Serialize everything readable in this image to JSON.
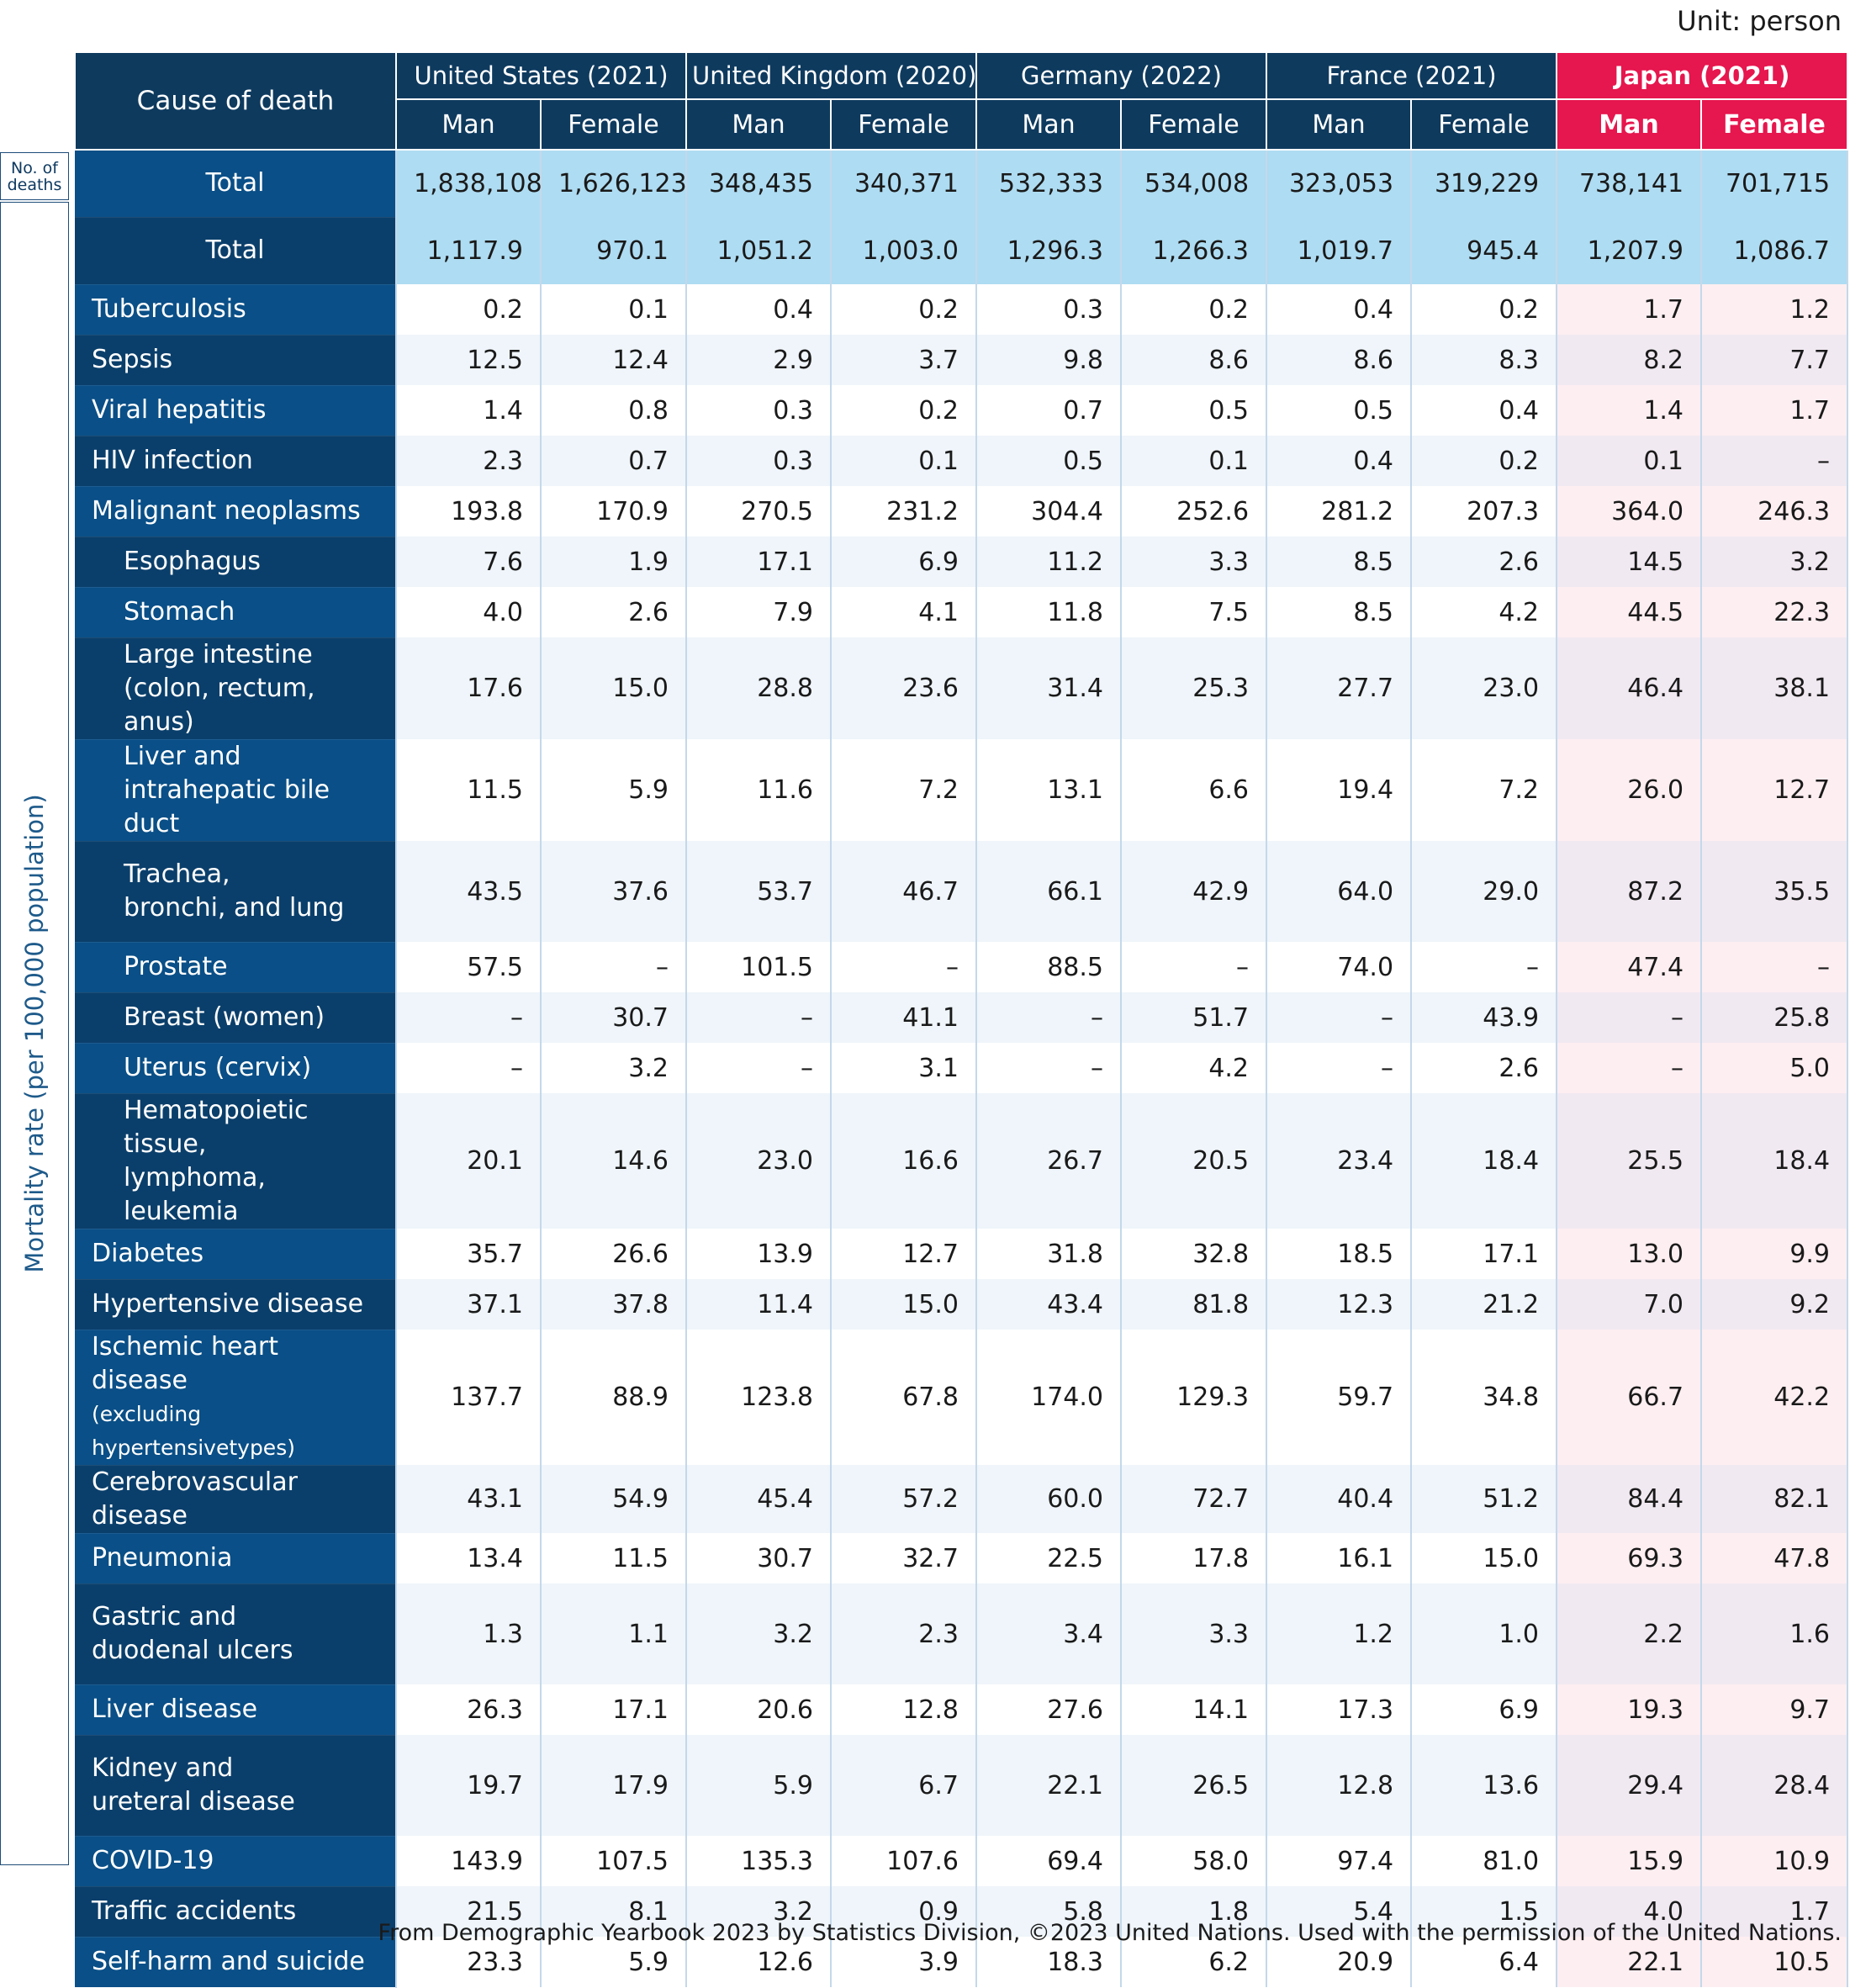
{
  "unit_label": "Unit: person",
  "source": "From Demographic Yearbook 2023 by Statistics Division, ©2023 United Nations. Used with the permission of the United Nations.",
  "side_labels": {
    "deaths": "No. of deaths",
    "mortality": "Mortality rate (per 100,000 population)"
  },
  "header": {
    "cause_label": "Cause of death",
    "countries": [
      {
        "name": "United States (2021)",
        "highlight": false
      },
      {
        "name": "United Kingdom (2020)",
        "highlight": false
      },
      {
        "name": "Germany (2022)",
        "highlight": false
      },
      {
        "name": "France (2021)",
        "highlight": false
      },
      {
        "name": "Japan (2021)",
        "highlight": true
      }
    ],
    "sexes": [
      "Man",
      "Female"
    ]
  },
  "colors": {
    "header_navy": "#0e3a5e",
    "label_blue": "#0a4f87",
    "label_navy": "#0b3f6b",
    "japan_red": "#e6164e",
    "total_row": "#aedcf2",
    "japan_tint": "#fdeef1"
  },
  "rows": [
    {
      "label": "Total",
      "total": true,
      "height": 80,
      "values": [
        "1,838,108",
        "1,626,123",
        "348,435",
        "340,371",
        "532,333",
        "534,008",
        "323,053",
        "319,229",
        "738,141",
        "701,715"
      ]
    },
    {
      "label": "Total",
      "total": true,
      "height": 80,
      "values": [
        "1,117.9",
        "970.1",
        "1,051.2",
        "1,003.0",
        "1,296.3",
        "1,266.3",
        "1,019.7",
        "945.4",
        "1,207.9",
        "1,086.7"
      ]
    },
    {
      "label": "Tuberculosis",
      "height": 60,
      "values": [
        "0.2",
        "0.1",
        "0.4",
        "0.2",
        "0.3",
        "0.2",
        "0.4",
        "0.2",
        "1.7",
        "1.2"
      ]
    },
    {
      "label": "Sepsis",
      "height": 60,
      "values": [
        "12.5",
        "12.4",
        "2.9",
        "3.7",
        "9.8",
        "8.6",
        "8.6",
        "8.3",
        "8.2",
        "7.7"
      ]
    },
    {
      "label": "Viral hepatitis",
      "height": 60,
      "values": [
        "1.4",
        "0.8",
        "0.3",
        "0.2",
        "0.7",
        "0.5",
        "0.5",
        "0.4",
        "1.4",
        "1.7"
      ]
    },
    {
      "label": "HIV infection",
      "height": 60,
      "values": [
        "2.3",
        "0.7",
        "0.3",
        "0.1",
        "0.5",
        "0.1",
        "0.4",
        "0.2",
        "0.1",
        "–"
      ]
    },
    {
      "label": "Malignant neoplasms",
      "height": 60,
      "values": [
        "193.8",
        "170.9",
        "270.5",
        "231.2",
        "304.4",
        "252.6",
        "281.2",
        "207.3",
        "364.0",
        "246.3"
      ]
    },
    {
      "label": "Esophagus",
      "indent": true,
      "height": 60,
      "values": [
        "7.6",
        "1.9",
        "17.1",
        "6.9",
        "11.2",
        "3.3",
        "8.5",
        "2.6",
        "14.5",
        "3.2"
      ]
    },
    {
      "label": "Stomach",
      "indent": true,
      "height": 60,
      "values": [
        "4.0",
        "2.6",
        "7.9",
        "4.1",
        "11.8",
        "7.5",
        "8.5",
        "4.2",
        "44.5",
        "22.3"
      ]
    },
    {
      "label": "Large intestine",
      "label2": " (colon, rectum, anus)",
      "indent": true,
      "height": 120,
      "values": [
        "17.6",
        "15.0",
        "28.8",
        "23.6",
        "31.4",
        "25.3",
        "27.7",
        "23.0",
        "46.4",
        "38.1"
      ]
    },
    {
      "label": "Liver and",
      "label2": "intrahepatic bile duct",
      "indent": true,
      "height": 120,
      "values": [
        "11.5",
        "5.9",
        "11.6",
        "7.2",
        "13.1",
        "6.6",
        "19.4",
        "7.2",
        "26.0",
        "12.7"
      ]
    },
    {
      "label": "Trachea,",
      "label2": "bronchi, and lung",
      "indent": true,
      "height": 120,
      "values": [
        "43.5",
        "37.6",
        "53.7",
        "46.7",
        "66.1",
        "42.9",
        "64.0",
        "29.0",
        "87.2",
        "35.5"
      ]
    },
    {
      "label": "Prostate",
      "indent": true,
      "height": 60,
      "values": [
        "57.5",
        "–",
        "101.5",
        "–",
        "88.5",
        "–",
        "74.0",
        "–",
        "47.4",
        "–"
      ]
    },
    {
      "label": "Breast (women)",
      "indent": true,
      "height": 60,
      "values": [
        "–",
        "30.7",
        "–",
        "41.1",
        "–",
        "51.7",
        "–",
        "43.9",
        "–",
        "25.8"
      ]
    },
    {
      "label": "Uterus (cervix)",
      "indent": true,
      "height": 60,
      "values": [
        "–",
        "3.2",
        "–",
        "3.1",
        "–",
        "4.2",
        "–",
        "2.6",
        "–",
        "5.0"
      ]
    },
    {
      "label": "Hematopoietic tissue,",
      "label2": "lymphoma, leukemia",
      "indent": true,
      "height": 120,
      "values": [
        "20.1",
        "14.6",
        "23.0",
        "16.6",
        "26.7",
        "20.5",
        "23.4",
        "18.4",
        "25.5",
        "18.4"
      ]
    },
    {
      "label": "Diabetes",
      "height": 60,
      "values": [
        "35.7",
        "26.6",
        "13.9",
        "12.7",
        "31.8",
        "32.8",
        "18.5",
        "17.1",
        "13.0",
        "9.9"
      ]
    },
    {
      "label": "Hypertensive disease",
      "height": 60,
      "values": [
        "37.1",
        "37.8",
        "11.4",
        "15.0",
        "43.4",
        "81.8",
        "12.3",
        "21.2",
        "7.0",
        "9.2"
      ]
    },
    {
      "label": "Ischemic heart disease",
      "label2": "(excluding hypertensivetypes)",
      "label2_small": true,
      "height": 120,
      "values": [
        "137.7",
        "88.9",
        "123.8",
        "67.8",
        "174.0",
        "129.3",
        "59.7",
        "34.8",
        "66.7",
        "42.2"
      ]
    },
    {
      "label": "Cerebrovascular disease",
      "height": 60,
      "values": [
        "43.1",
        "54.9",
        "45.4",
        "57.2",
        "60.0",
        "72.7",
        "40.4",
        "51.2",
        "84.4",
        "82.1"
      ]
    },
    {
      "label": "Pneumonia",
      "height": 60,
      "values": [
        "13.4",
        "11.5",
        "30.7",
        "32.7",
        "22.5",
        "17.8",
        "16.1",
        "15.0",
        "69.3",
        "47.8"
      ]
    },
    {
      "label": "Gastric and",
      "label2": "duodenal ulcers",
      "height": 120,
      "values": [
        "1.3",
        "1.1",
        "3.2",
        "2.3",
        "3.4",
        "3.3",
        "1.2",
        "1.0",
        "2.2",
        "1.6"
      ]
    },
    {
      "label": "Liver disease",
      "height": 60,
      "values": [
        "26.3",
        "17.1",
        "20.6",
        "12.8",
        "27.6",
        "14.1",
        "17.3",
        "6.9",
        "19.3",
        "9.7"
      ]
    },
    {
      "label": "Kidney and",
      "label2": "ureteral disease",
      "height": 120,
      "values": [
        "19.7",
        "17.9",
        "5.9",
        "6.7",
        "22.1",
        "26.5",
        "12.8",
        "13.6",
        "29.4",
        "28.4"
      ]
    },
    {
      "label": "COVID-19",
      "height": 60,
      "values": [
        "143.9",
        "107.5",
        "135.3",
        "107.6",
        "69.4",
        "58.0",
        "97.4",
        "81.0",
        "15.9",
        "10.9"
      ]
    },
    {
      "label": "Traffic accidents",
      "height": 60,
      "values": [
        "21.5",
        "8.1",
        "3.2",
        "0.9",
        "5.8",
        "1.8",
        "5.4",
        "1.5",
        "4.0",
        "1.7"
      ]
    },
    {
      "label": "Self-harm and suicide",
      "height": 60,
      "values": [
        "23.3",
        "5.9",
        "12.6",
        "3.9",
        "18.3",
        "6.2",
        "20.9",
        "6.4",
        "22.1",
        "10.5"
      ]
    }
  ]
}
